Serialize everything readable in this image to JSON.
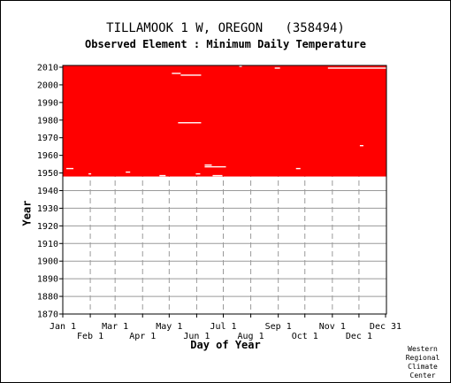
{
  "chart_data": {
    "type": "heatmap",
    "title": "TILLAMOOK 1 W, OREGON   (358494)",
    "subtitle": "Observed Element : Minimum Daily Temperature",
    "xlabel": "Day of Year",
    "ylabel": "Year",
    "xlim": [
      1,
      366
    ],
    "ylim": [
      1870,
      2011
    ],
    "x_ticks_upper": [
      {
        "label": "Jan 1",
        "day": 1
      },
      {
        "label": "Mar 1",
        "day": 60
      },
      {
        "label": "May 1",
        "day": 121
      },
      {
        "label": "Jul 1",
        "day": 182
      },
      {
        "label": "Sep 1",
        "day": 244
      },
      {
        "label": "Nov 1",
        "day": 305
      },
      {
        "label": "Dec 31",
        "day": 365
      }
    ],
    "x_ticks_lower": [
      {
        "label": "Feb 1",
        "day": 32
      },
      {
        "label": "Apr 1",
        "day": 91
      },
      {
        "label": "Jun 1",
        "day": 152
      },
      {
        "label": "Aug 1",
        "day": 213
      },
      {
        "label": "Oct 1",
        "day": 274
      },
      {
        "label": "Dec 1",
        "day": 335
      }
    ],
    "y_ticks": [
      2010,
      2000,
      1990,
      1980,
      1970,
      1960,
      1950,
      1940,
      1930,
      1920,
      1910,
      1900,
      1890,
      1880,
      1870
    ],
    "grid": true,
    "data_color": "#ff0000",
    "observed_period": {
      "start_year": 1948,
      "end_year": 2010,
      "start_day": 1,
      "end_day": 365
    },
    "missing_segments": [
      {
        "year": 2010,
        "day_start": 200,
        "day_end": 202
      },
      {
        "year": 2009,
        "day_start": 300,
        "day_end": 365
      },
      {
        "year": 2009,
        "day_start": 240,
        "day_end": 245
      },
      {
        "year": 2006,
        "day_start": 124,
        "day_end": 133
      },
      {
        "year": 2005,
        "day_start": 134,
        "day_end": 156
      },
      {
        "year": 1978,
        "day_start": 131,
        "day_end": 156
      },
      {
        "year": 1965,
        "day_start": 336,
        "day_end": 339
      },
      {
        "year": 1954,
        "day_start": 161,
        "day_end": 168
      },
      {
        "year": 1953,
        "day_start": 161,
        "day_end": 184
      },
      {
        "year": 1952,
        "day_start": 5,
        "day_end": 12
      },
      {
        "year": 1952,
        "day_start": 264,
        "day_end": 268
      },
      {
        "year": 1950,
        "day_start": 72,
        "day_end": 76
      },
      {
        "year": 1949,
        "day_start": 151,
        "day_end": 155
      },
      {
        "year": 1949,
        "day_start": 30,
        "day_end": 32
      },
      {
        "year": 1948,
        "day_start": 110,
        "day_end": 116
      },
      {
        "year": 1948,
        "day_start": 170,
        "day_end": 180
      }
    ]
  },
  "credit": {
    "lines": [
      "Western",
      "Regional",
      "Climate",
      "Center"
    ]
  }
}
